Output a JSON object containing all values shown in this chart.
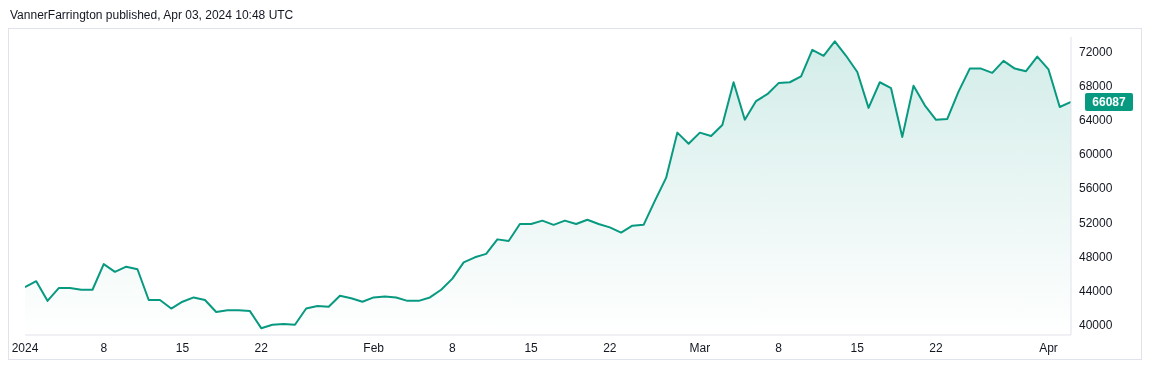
{
  "chart_data": {
    "type": "area",
    "title": "VannerFarrington published, Apr 03, 2024 10:48 UTC",
    "x": [
      "2024-01-01",
      "2024-01-02",
      "2024-01-03",
      "2024-01-04",
      "2024-01-05",
      "2024-01-06",
      "2024-01-07",
      "2024-01-08",
      "2024-01-09",
      "2024-01-10",
      "2024-01-11",
      "2024-01-12",
      "2024-01-13",
      "2024-01-14",
      "2024-01-15",
      "2024-01-16",
      "2024-01-17",
      "2024-01-18",
      "2024-01-19",
      "2024-01-20",
      "2024-01-21",
      "2024-01-22",
      "2024-01-23",
      "2024-01-24",
      "2024-01-25",
      "2024-01-26",
      "2024-01-27",
      "2024-01-28",
      "2024-01-29",
      "2024-01-30",
      "2024-01-31",
      "2024-02-01",
      "2024-02-02",
      "2024-02-03",
      "2024-02-04",
      "2024-02-05",
      "2024-02-06",
      "2024-02-07",
      "2024-02-08",
      "2024-02-09",
      "2024-02-10",
      "2024-02-11",
      "2024-02-12",
      "2024-02-13",
      "2024-02-14",
      "2024-02-15",
      "2024-02-16",
      "2024-02-17",
      "2024-02-18",
      "2024-02-19",
      "2024-02-20",
      "2024-02-21",
      "2024-02-22",
      "2024-02-23",
      "2024-02-24",
      "2024-02-25",
      "2024-02-26",
      "2024-02-27",
      "2024-02-28",
      "2024-02-29",
      "2024-03-01",
      "2024-03-02",
      "2024-03-03",
      "2024-03-04",
      "2024-03-05",
      "2024-03-06",
      "2024-03-07",
      "2024-03-08",
      "2024-03-09",
      "2024-03-10",
      "2024-03-11",
      "2024-03-12",
      "2024-03-13",
      "2024-03-14",
      "2024-03-15",
      "2024-03-16",
      "2024-03-17",
      "2024-03-18",
      "2024-03-19",
      "2024-03-20",
      "2024-03-21",
      "2024-03-22",
      "2024-03-23",
      "2024-03-24",
      "2024-03-25",
      "2024-03-26",
      "2024-03-27",
      "2024-03-28",
      "2024-03-29",
      "2024-03-30",
      "2024-03-31",
      "2024-04-01",
      "2024-04-02",
      "2024-04-03"
    ],
    "values": [
      44400,
      45100,
      42800,
      44300,
      44300,
      44100,
      44100,
      47100,
      46200,
      46800,
      46500,
      42900,
      42900,
      41900,
      42700,
      43200,
      42900,
      41500,
      41700,
      41700,
      41600,
      39600,
      40000,
      40100,
      40000,
      41900,
      42200,
      42100,
      43400,
      43100,
      42700,
      43200,
      43300,
      43200,
      42800,
      42800,
      43200,
      44100,
      45400,
      47300,
      47900,
      48300,
      50000,
      49800,
      51800,
      51800,
      52200,
      51700,
      52200,
      51800,
      52300,
      51800,
      51400,
      50800,
      51600,
      51700,
      54500,
      57200,
      62500,
      61200,
      62500,
      62100,
      63400,
      68400,
      64000,
      66200,
      67000,
      68300,
      68400,
      69100,
      72200,
      71500,
      73200,
      71500,
      69600,
      65400,
      68400,
      67700,
      62000,
      68000,
      65700,
      64000,
      64100,
      67300,
      70000,
      70000,
      69500,
      70900,
      70000,
      69700,
      71400,
      69900,
      65500,
      66087
    ],
    "color": "#089981",
    "xlim": [
      "2024-01-01",
      "2024-04-03"
    ],
    "xticks": [
      {
        "value": "2024-01-01",
        "label": "2024"
      },
      {
        "value": "2024-01-08",
        "label": "8"
      },
      {
        "value": "2024-01-15",
        "label": "15"
      },
      {
        "value": "2024-01-22",
        "label": "22"
      },
      {
        "value": "2024-02-01",
        "label": "Feb"
      },
      {
        "value": "2024-02-08",
        "label": "8"
      },
      {
        "value": "2024-02-15",
        "label": "15"
      },
      {
        "value": "2024-02-22",
        "label": "22"
      },
      {
        "value": "2024-03-01",
        "label": "Mar"
      },
      {
        "value": "2024-03-08",
        "label": "8"
      },
      {
        "value": "2024-03-15",
        "label": "15"
      },
      {
        "value": "2024-03-22",
        "label": "22"
      },
      {
        "value": "2024-04-01",
        "label": "Apr"
      }
    ],
    "ylim": [
      38800,
      73700
    ],
    "yticks": [
      40000,
      44000,
      48000,
      52000,
      56000,
      60000,
      64000,
      68000,
      72000
    ],
    "annotations": [
      {
        "text": "66087",
        "x": "2024-04-03",
        "y": 66087
      }
    ],
    "grid": false
  }
}
